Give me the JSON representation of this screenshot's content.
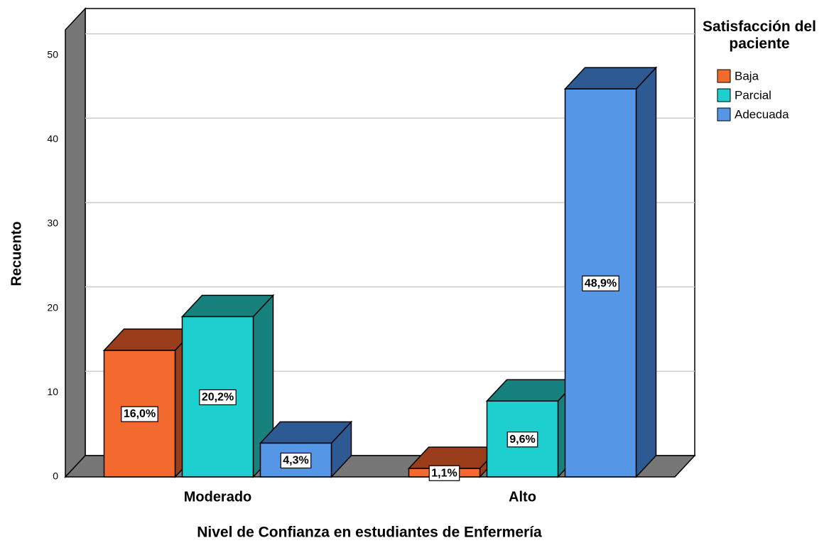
{
  "chart_data": {
    "type": "bar3d",
    "x_label": "Nivel de Confianza en estudiantes de Enfermería",
    "y_label": "Recuento",
    "legend_title": "Satisfacción del paciente",
    "legend_position": "right",
    "categories": [
      "Moderado",
      "Alto"
    ],
    "series": [
      {
        "name": "Baja",
        "color": "#f26a2e",
        "top_color": "#9a3d1a",
        "values": [
          15,
          1
        ],
        "percent_labels": [
          "16,0%",
          "1,1%"
        ]
      },
      {
        "name": "Parcial",
        "color": "#1dcfcf",
        "top_color": "#17817d",
        "values": [
          19,
          9
        ],
        "percent_labels": [
          "20,2%",
          "9,6%"
        ]
      },
      {
        "name": "Adecuada",
        "color": "#5596e6",
        "top_color": "#2e5a94",
        "values": [
          4,
          46
        ],
        "percent_labels": [
          "4,3%",
          "48,9%"
        ]
      }
    ],
    "ylim": [
      0,
      53
    ],
    "yticks": [
      0,
      10,
      20,
      30,
      40,
      50
    ],
    "grid": true
  }
}
